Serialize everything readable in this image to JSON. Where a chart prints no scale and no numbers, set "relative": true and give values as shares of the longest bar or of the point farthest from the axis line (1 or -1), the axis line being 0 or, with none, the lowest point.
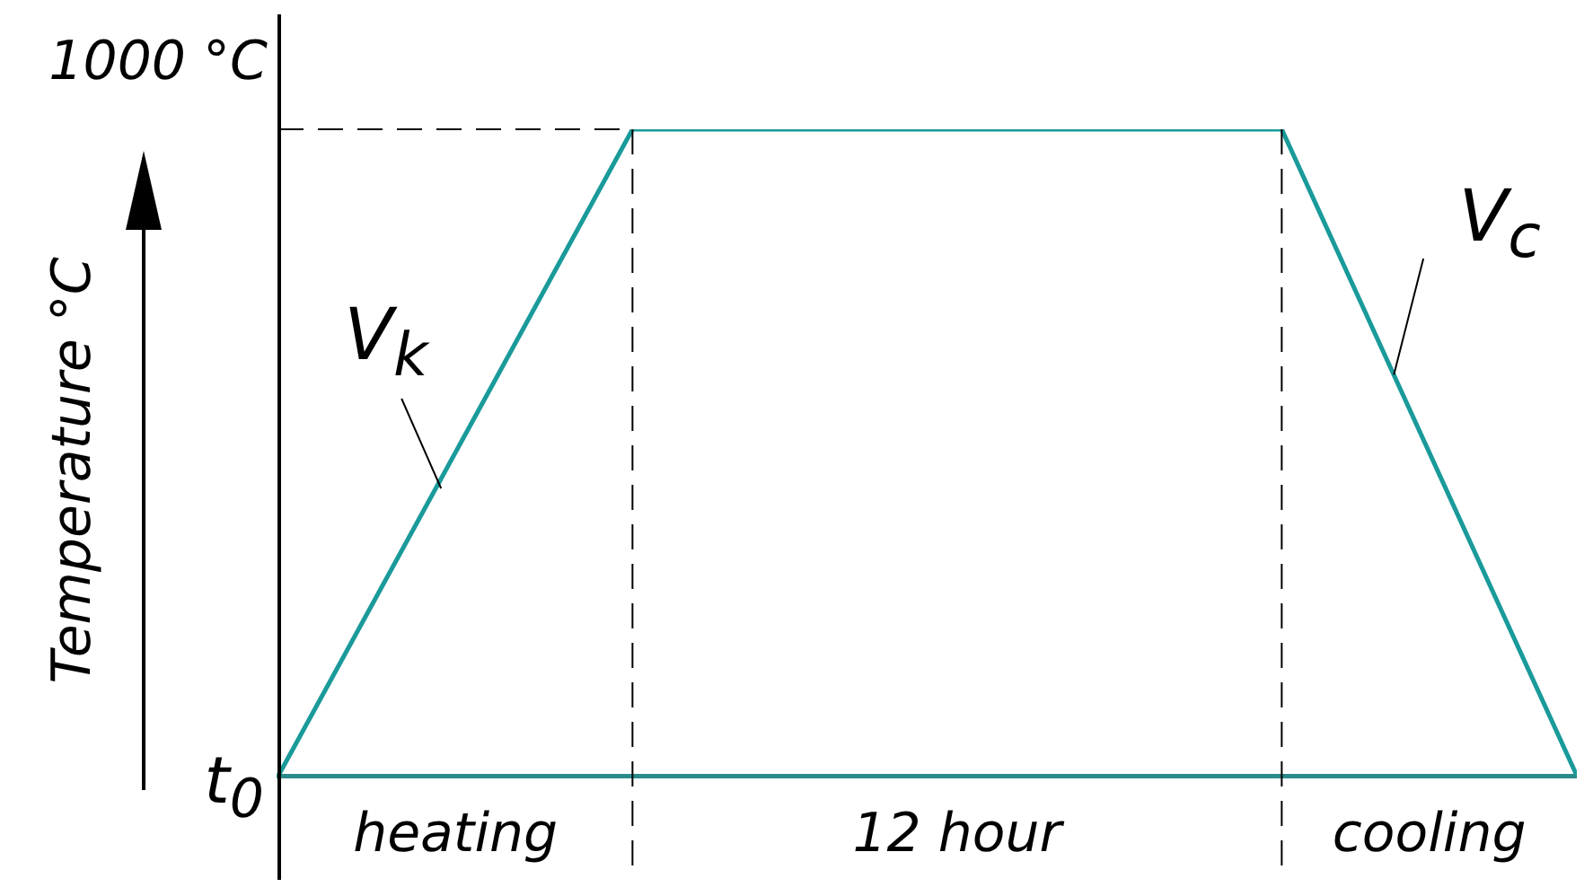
{
  "chart_data": {
    "type": "line",
    "relative": true,
    "ylabel": "Temperature °C",
    "categories": [
      null,
      null,
      null,
      null,
      null,
      null,
      null,
      null,
      null,
      null,
      null,
      null,
      null,
      null,
      null,
      null,
      null,
      null,
      null,
      null,
      null,
      null,
      null
    ],
    "series": [
      {
        "color": "#1a9a9a",
        "values": [
          0,
          null,
          null,
          null,
          null,
          null,
          1,
          null,
          null,
          null,
          null,
          null,
          null,
          null,
          null,
          null,
          null,
          1,
          null,
          null,
          null,
          null,
          0
        ]
      }
    ],
    "annotations": [
      "1000 °C",
      "t$_{0}$",
      "V$_{k}$",
      "V$_{c}$",
      "heating",
      "12 hour",
      "cooling"
    ]
  }
}
